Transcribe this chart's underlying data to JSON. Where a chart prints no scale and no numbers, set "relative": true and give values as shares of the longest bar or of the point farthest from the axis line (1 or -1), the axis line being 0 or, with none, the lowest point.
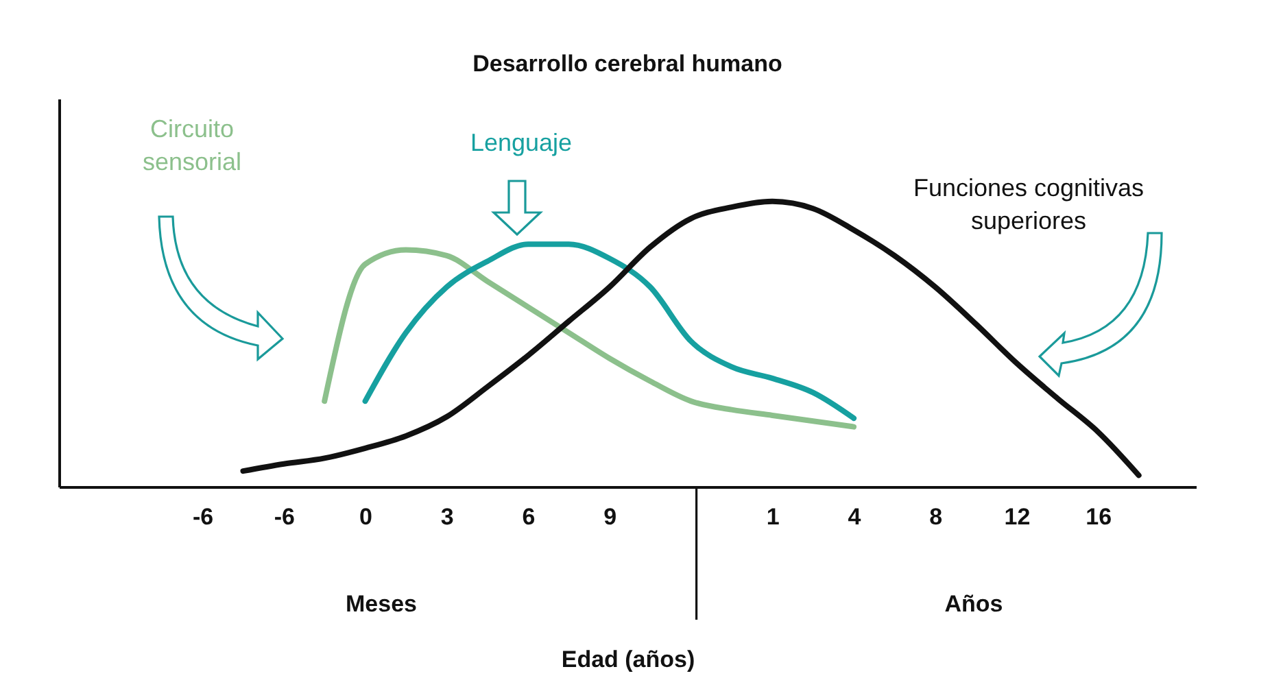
{
  "chart_data": {
    "type": "line",
    "title": "Desarrollo cerebral humano",
    "xlabel": "Edad (años)",
    "relative": true,
    "categories": [
      null,
      null,
      null,
      "-6",
      null,
      "-6",
      null,
      "0",
      null,
      "3",
      null,
      "6",
      null,
      "9",
      null,
      null,
      null,
      "1",
      null,
      "4",
      null,
      "8",
      null,
      "12",
      null,
      "16",
      null,
      null
    ],
    "annotations": [
      "Meses",
      "Años"
    ],
    "grid": false,
    "line_style": "solid",
    "series": [
      {
        "name": "Circuito\nsensorial",
        "color": "#8cc08c",
        "values": [
          null,
          null,
          null,
          null,
          null,
          null,
          0.3,
          0.78,
          0.83,
          0.81,
          0.72,
          0.63,
          0.54,
          0.45,
          0.37,
          0.3,
          0.27,
          0.25,
          0.23,
          0.21,
          null,
          null,
          null,
          null,
          null,
          null,
          null,
          null
        ]
      },
      {
        "name": "Lenguaje",
        "color": "#16a0a0",
        "values": [
          null,
          null,
          null,
          null,
          null,
          null,
          null,
          0.3,
          0.54,
          0.7,
          0.79,
          0.85,
          0.85,
          0.8,
          0.7,
          0.51,
          0.42,
          0.38,
          0.33,
          0.24,
          null,
          null,
          null,
          null,
          null,
          null,
          null,
          null
        ]
      },
      {
        "name": "Funciones cognitivas\nsuperiores",
        "color": "#111111",
        "values": [
          null,
          null,
          null,
          null,
          0.055,
          0.08,
          0.1,
          0.135,
          0.178,
          0.245,
          0.35,
          0.46,
          0.58,
          0.7,
          0.84,
          0.94,
          0.98,
          1,
          0.975,
          0.9,
          0.81,
          0.7,
          0.57,
          0.433,
          0.31,
          0.192,
          0.04,
          null
        ]
      }
    ]
  }
}
